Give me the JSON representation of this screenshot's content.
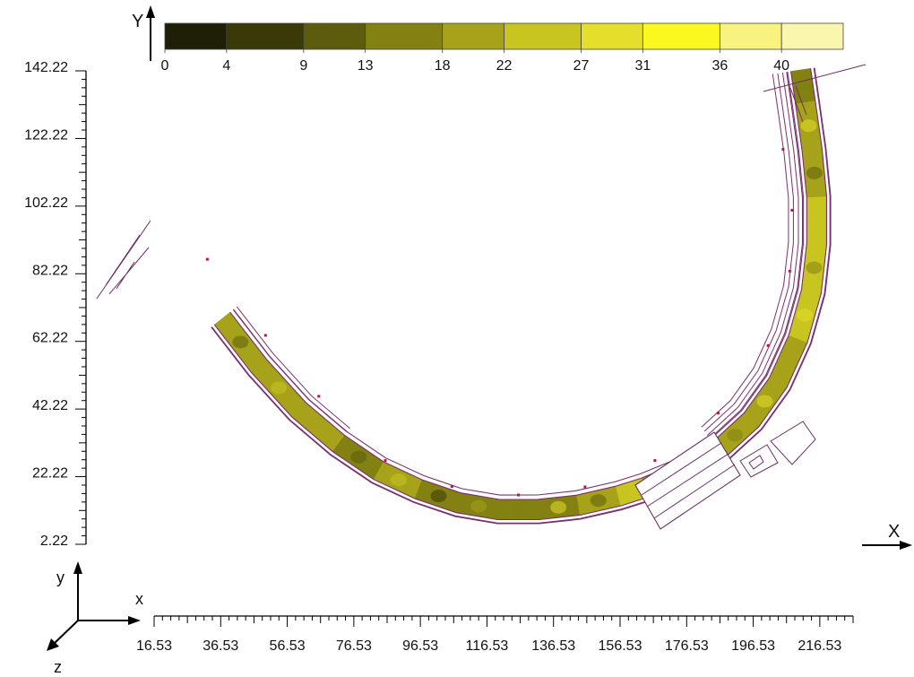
{
  "chart_data": {
    "type": "heatmap",
    "title": "",
    "xlabel": "X",
    "ylabel": "Y",
    "triad_labels": {
      "x": "x",
      "y": "y",
      "z": "z"
    },
    "xlim": [
      16.53,
      226.53
    ],
    "ylim": [
      2.22,
      142.22
    ],
    "x_ticks": [
      16.53,
      36.53,
      56.53,
      76.53,
      96.53,
      116.53,
      136.53,
      156.53,
      176.53,
      196.53,
      216.53
    ],
    "y_ticks": [
      2.22,
      22.22,
      42.22,
      62.22,
      82.22,
      102.22,
      122.22,
      142.22
    ],
    "x_tick_labels": [
      "16.53",
      "36.53",
      "56.53",
      "76.53",
      "96.53",
      "116.53",
      "136.53",
      "156.53",
      "176.53",
      "196.53",
      "216.53"
    ],
    "y_tick_labels": [
      "2.22",
      "22.22",
      "42.22",
      "62.22",
      "82.22",
      "102.22",
      "122.22",
      "142.22"
    ],
    "legend": {
      "placement": "top",
      "tick_labels": [
        "0",
        "4",
        "9",
        "13",
        "18",
        "22",
        "27",
        "31",
        "36",
        "40"
      ],
      "bins": [
        {
          "min": 0,
          "max": 4,
          "color": "#1f1e06"
        },
        {
          "min": 4,
          "max": 9,
          "color": "#3a3908"
        },
        {
          "min": 9,
          "max": 13,
          "color": "#5d5c0c"
        },
        {
          "min": 13,
          "max": 18,
          "color": "#828112"
        },
        {
          "min": 18,
          "max": 22,
          "color": "#a6a31a"
        },
        {
          "min": 22,
          "max": 27,
          "color": "#c8c521"
        },
        {
          "min": 27,
          "max": 31,
          "color": "#e3df2a"
        },
        {
          "min": 31,
          "max": 36,
          "color": "#fbf820"
        },
        {
          "min": 36,
          "max": 40,
          "color": "#f7f37e"
        },
        {
          "min": 40,
          "max": 44,
          "color": "#faf6ae"
        }
      ]
    },
    "band": {
      "center": [
        [
          37.0,
          69.0
        ],
        [
          48.0,
          55.0
        ],
        [
          60.0,
          42.0
        ],
        [
          72.0,
          32.0
        ],
        [
          84.0,
          24.0
        ],
        [
          96.0,
          18.5
        ],
        [
          108.0,
          14.5
        ],
        [
          120.0,
          12.5
        ],
        [
          132.0,
          12.5
        ],
        [
          144.0,
          13.8
        ],
        [
          156.0,
          16.5
        ],
        [
          164.0,
          19.0
        ],
        [
          174.0,
          23.0
        ],
        [
          186.0,
          30.0
        ],
        [
          196.0,
          39.0
        ],
        [
          204.0,
          50.0
        ],
        [
          210.0,
          63.0
        ],
        [
          214.0,
          77.0
        ],
        [
          215.6,
          91.0
        ],
        [
          215.6,
          105.0
        ],
        [
          214.2,
          119.0
        ],
        [
          212.2,
          133.0
        ],
        [
          210.8,
          142.5
        ]
      ],
      "values": [
        28,
        14,
        26,
        12,
        22,
        18,
        10,
        24,
        8,
        20,
        16,
        30,
        12,
        24,
        14,
        26,
        16,
        30,
        18,
        28,
        15,
        22,
        12
      ],
      "width": 6.0
    },
    "boundary_offsets": [
      -3.0,
      3.0,
      -4.2,
      4.3
    ],
    "inner_offsets": [
      -4.0
    ],
    "outer_offsets": [
      4.0,
      5.5,
      7.0,
      8.5
    ],
    "markers": [
      [
        32.5,
        86.5
      ],
      [
        50.0,
        64.0
      ],
      [
        66.0,
        46.0
      ],
      [
        86.0,
        27.0
      ],
      [
        106.0,
        19.3
      ],
      [
        126.0,
        16.8
      ],
      [
        146.0,
        19.2
      ],
      [
        167.0,
        27.0
      ],
      [
        186.0,
        41.0
      ],
      [
        201.0,
        61.0
      ],
      [
        207.5,
        83.0
      ],
      [
        208.2,
        101.0
      ],
      [
        205.5,
        119.0
      ]
    ],
    "colorbar_value_min": 0,
    "colorbar_value_max": 44
  }
}
